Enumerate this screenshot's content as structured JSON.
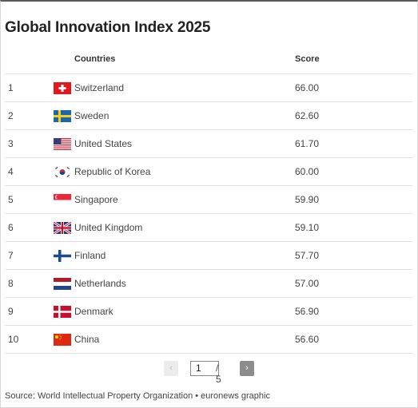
{
  "title": "Global Innovation Index 2025",
  "columns": {
    "country": "Countries",
    "score": "Score"
  },
  "rows": [
    {
      "rank": "1",
      "country": "Switzerland",
      "score": "66.00",
      "flag": "switzerland-flag-icon"
    },
    {
      "rank": "2",
      "country": "Sweden",
      "score": "62.60",
      "flag": "sweden-flag-icon"
    },
    {
      "rank": "3",
      "country": "United States",
      "score": "61.70",
      "flag": "usa-flag-icon"
    },
    {
      "rank": "4",
      "country": "Republic of Korea",
      "score": "60.00",
      "flag": "korea-flag-icon"
    },
    {
      "rank": "5",
      "country": "Singapore",
      "score": "59.90",
      "flag": "singapore-flag-icon"
    },
    {
      "rank": "6",
      "country": "United Kingdom",
      "score": "59.10",
      "flag": "uk-flag-icon"
    },
    {
      "rank": "7",
      "country": "Finland",
      "score": "57.70",
      "flag": "finland-flag-icon"
    },
    {
      "rank": "8",
      "country": "Netherlands",
      "score": "57.00",
      "flag": "netherlands-flag-icon"
    },
    {
      "rank": "9",
      "country": "Denmark",
      "score": "56.90",
      "flag": "denmark-flag-icon"
    },
    {
      "rank": "10",
      "country": "China",
      "score": "56.60",
      "flag": "china-flag-icon"
    }
  ],
  "pagination": {
    "current_page": "1",
    "total": "/ 5",
    "prev_icon": "chevron-left-icon",
    "next_icon": "chevron-right-icon"
  },
  "source": "Source: World Intellectual Property Organization • euronews graphic"
}
